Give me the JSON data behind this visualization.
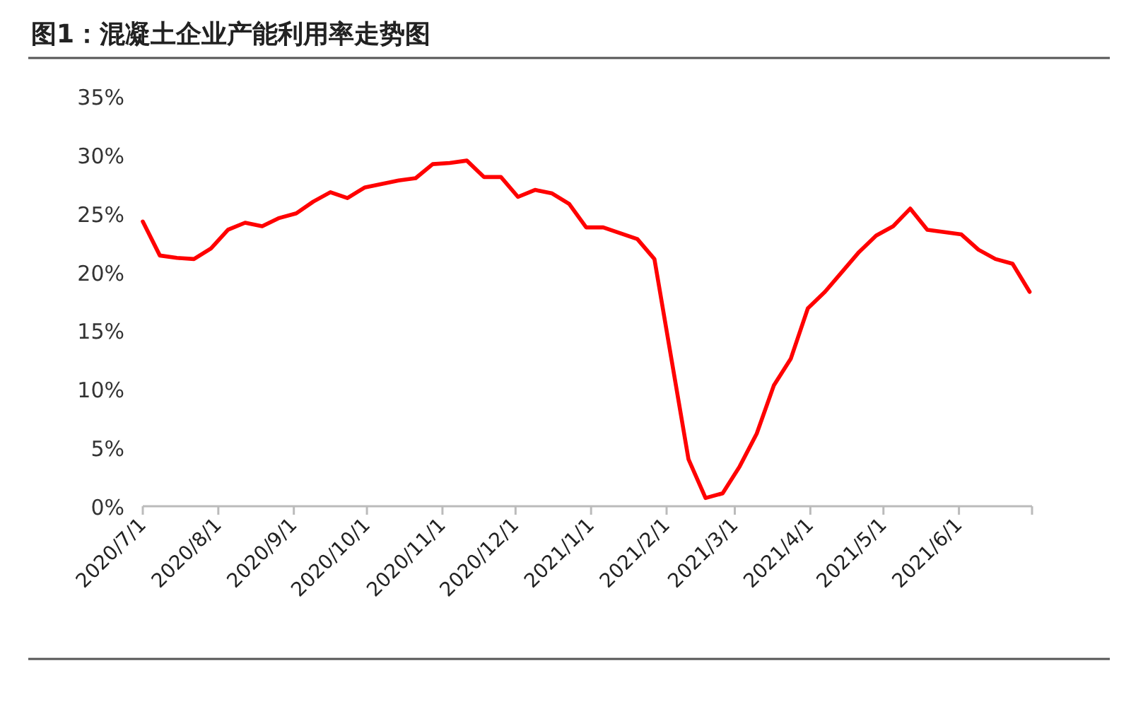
{
  "chart_data": {
    "type": "line",
    "title": "图1：混凝土企业产能利用率走势图",
    "x": [
      "2020-07-01",
      "2020-07-08",
      "2020-07-15",
      "2020-07-22",
      "2020-07-29",
      "2020-08-05",
      "2020-08-12",
      "2020-08-19",
      "2020-08-26",
      "2020-09-02",
      "2020-09-09",
      "2020-09-16",
      "2020-09-23",
      "2020-09-30",
      "2020-10-07",
      "2020-10-14",
      "2020-10-21",
      "2020-10-28",
      "2020-11-04",
      "2020-11-11",
      "2020-11-18",
      "2020-11-25",
      "2020-12-02",
      "2020-12-09",
      "2020-12-16",
      "2020-12-23",
      "2020-12-30",
      "2021-01-06",
      "2021-01-13",
      "2021-01-20",
      "2021-01-27",
      "2021-02-10",
      "2021-02-17",
      "2021-02-24",
      "2021-03-03",
      "2021-03-10",
      "2021-03-17",
      "2021-03-24",
      "2021-03-31",
      "2021-04-07",
      "2021-04-14",
      "2021-04-21",
      "2021-04-28",
      "2021-05-05",
      "2021-05-12",
      "2021-05-19",
      "2021-05-26",
      "2021-06-02",
      "2021-06-09",
      "2021-06-16",
      "2021-06-23",
      "2021-06-30"
    ],
    "series": [
      {
        "color": "#ff0000",
        "values": [
          24.3,
          21.4,
          21.2,
          21.1,
          22.0,
          23.6,
          24.2,
          23.9,
          24.6,
          25.0,
          26.0,
          26.8,
          26.3,
          27.2,
          27.5,
          27.8,
          28.0,
          29.2,
          29.3,
          29.5,
          28.1,
          28.1,
          26.4,
          27.0,
          26.7,
          25.8,
          23.8,
          23.8,
          23.3,
          22.8,
          21.1,
          4.0,
          0.7,
          1.1,
          3.4,
          6.2,
          10.3,
          12.6,
          16.9,
          18.3,
          20.0,
          21.7,
          23.1,
          23.9,
          25.4,
          23.6,
          23.4,
          23.2,
          21.9,
          21.1,
          20.7,
          18.3
        ]
      }
    ],
    "xlim": [
      "2020-07-01",
      "2021-07-01"
    ],
    "xticks": [
      {
        "value": "2020-07-01",
        "label": "2020/7/1"
      },
      {
        "value": "2020-08-01",
        "label": "2020/8/1"
      },
      {
        "value": "2020-09-01",
        "label": "2020/9/1"
      },
      {
        "value": "2020-10-01",
        "label": "2020/10/1"
      },
      {
        "value": "2020-11-01",
        "label": "2020/11/1"
      },
      {
        "value": "2020-12-01",
        "label": "2020/12/1"
      },
      {
        "value": "2021-01-01",
        "label": "2021/1/1"
      },
      {
        "value": "2021-02-01",
        "label": "2021/2/1"
      },
      {
        "value": "2021-03-01",
        "label": "2021/3/1"
      },
      {
        "value": "2021-04-01",
        "label": "2021/4/1"
      },
      {
        "value": "2021-05-01",
        "label": "2021/5/1"
      },
      {
        "value": "2021-06-01",
        "label": "2021/6/1"
      },
      {
        "value": "2021-07-01",
        "label": null
      }
    ],
    "ylim": [
      0,
      35
    ],
    "yticks": [
      {
        "value": 0,
        "label": "0%"
      },
      {
        "value": 5,
        "label": "5%"
      },
      {
        "value": 10,
        "label": "10%"
      },
      {
        "value": 15,
        "label": "15%"
      },
      {
        "value": 20,
        "label": "20%"
      },
      {
        "value": 25,
        "label": "25%"
      },
      {
        "value": 30,
        "label": "30%"
      },
      {
        "value": 35,
        "label": "35%"
      }
    ],
    "grid": false,
    "marker": "none",
    "line_style": "solid"
  }
}
